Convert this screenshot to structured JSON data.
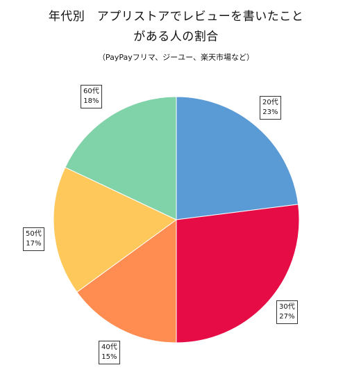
{
  "chart_data": {
    "type": "pie",
    "title_line1": "年代別　アプリストアでレビューを書いたこと",
    "title_line2": "がある人の割合",
    "subtitle": "（PayPayフリマ、ジーユー、楽天市場など）",
    "categories": [
      "20代",
      "30代",
      "40代",
      "50代",
      "60代"
    ],
    "values": [
      23,
      27,
      15,
      17,
      18
    ],
    "percent_labels": [
      "23%",
      "27%",
      "15%",
      "17%",
      "18%"
    ],
    "colors": [
      "#5B9BD5",
      "#E60C46",
      "#FF8C50",
      "#FFC85A",
      "#80D2A8"
    ],
    "start_angle_deg": 0,
    "direction": "clockwise",
    "legend": "none"
  }
}
